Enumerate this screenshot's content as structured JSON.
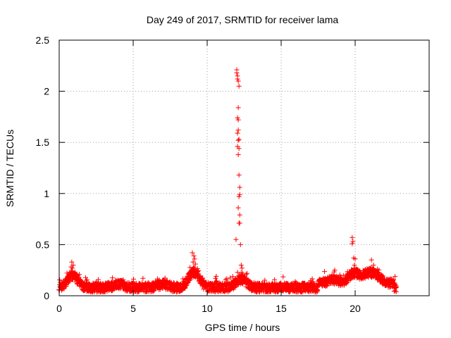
{
  "chart_data": {
    "type": "scatter",
    "title": "Day 249 of 2017, SRMTID for receiver lama",
    "xlabel": "GPS time / hours",
    "ylabel": "SRMTID / TECUs",
    "xlim": [
      0,
      25
    ],
    "ylim": [
      0,
      2.5
    ],
    "xticks": [
      0,
      5,
      10,
      15,
      20
    ],
    "yticks": [
      0,
      0.5,
      1,
      1.5,
      2,
      2.5
    ],
    "ytick_labels": [
      "0",
      "0.5",
      "1",
      "1.5",
      "2",
      "2.5"
    ],
    "grid": true,
    "marker": "+",
    "colors": {
      "series": "#ff0000",
      "grid": "#a0a0a0",
      "axis": "#000000"
    },
    "series": [
      {
        "name": "SRMTID",
        "time_range_hours": [
          0,
          22.8
        ],
        "baseline_tecu": 0.08,
        "spike_points": [
          {
            "x": 12.0,
            "y": 2.21
          },
          {
            "x": 12.0,
            "y": 2.18
          },
          {
            "x": 12.05,
            "y": 2.15
          },
          {
            "x": 12.05,
            "y": 2.12
          },
          {
            "x": 12.1,
            "y": 2.1
          },
          {
            "x": 12.15,
            "y": 2.05
          },
          {
            "x": 12.1,
            "y": 1.84
          },
          {
            "x": 12.05,
            "y": 1.74
          },
          {
            "x": 12.1,
            "y": 1.72
          },
          {
            "x": 12.1,
            "y": 1.62
          },
          {
            "x": 12.05,
            "y": 1.59
          },
          {
            "x": 12.15,
            "y": 1.53
          },
          {
            "x": 12.1,
            "y": 1.52
          },
          {
            "x": 12.05,
            "y": 1.46
          },
          {
            "x": 12.15,
            "y": 1.44
          },
          {
            "x": 12.1,
            "y": 1.38
          },
          {
            "x": 12.15,
            "y": 1.18
          },
          {
            "x": 12.2,
            "y": 1.06
          },
          {
            "x": 12.2,
            "y": 0.99
          },
          {
            "x": 12.15,
            "y": 0.97
          },
          {
            "x": 12.1,
            "y": 0.86
          },
          {
            "x": 12.2,
            "y": 0.79
          },
          {
            "x": 12.15,
            "y": 0.71
          },
          {
            "x": 12.2,
            "y": 0.71
          },
          {
            "x": 11.95,
            "y": 0.55
          },
          {
            "x": 12.25,
            "y": 0.5
          },
          {
            "x": 12.3,
            "y": 0.3
          },
          {
            "x": 12.35,
            "y": 0.27
          },
          {
            "x": 12.4,
            "y": 0.22
          },
          {
            "x": 9.0,
            "y": 0.42
          },
          {
            "x": 9.1,
            "y": 0.39
          },
          {
            "x": 9.15,
            "y": 0.36
          },
          {
            "x": 9.05,
            "y": 0.33
          },
          {
            "x": 9.2,
            "y": 0.31
          },
          {
            "x": 9.1,
            "y": 0.28
          },
          {
            "x": 19.8,
            "y": 0.57
          },
          {
            "x": 19.85,
            "y": 0.53
          },
          {
            "x": 19.8,
            "y": 0.51
          },
          {
            "x": 19.9,
            "y": 0.37
          },
          {
            "x": 20.0,
            "y": 0.36
          },
          {
            "x": 19.95,
            "y": 0.3
          },
          {
            "x": 0.85,
            "y": 0.33
          },
          {
            "x": 0.95,
            "y": 0.3
          },
          {
            "x": 0.9,
            "y": 0.27
          },
          {
            "x": 21.1,
            "y": 0.35
          },
          {
            "x": 21.5,
            "y": 0.26
          },
          {
            "x": 21.4,
            "y": 0.24
          }
        ]
      }
    ]
  }
}
